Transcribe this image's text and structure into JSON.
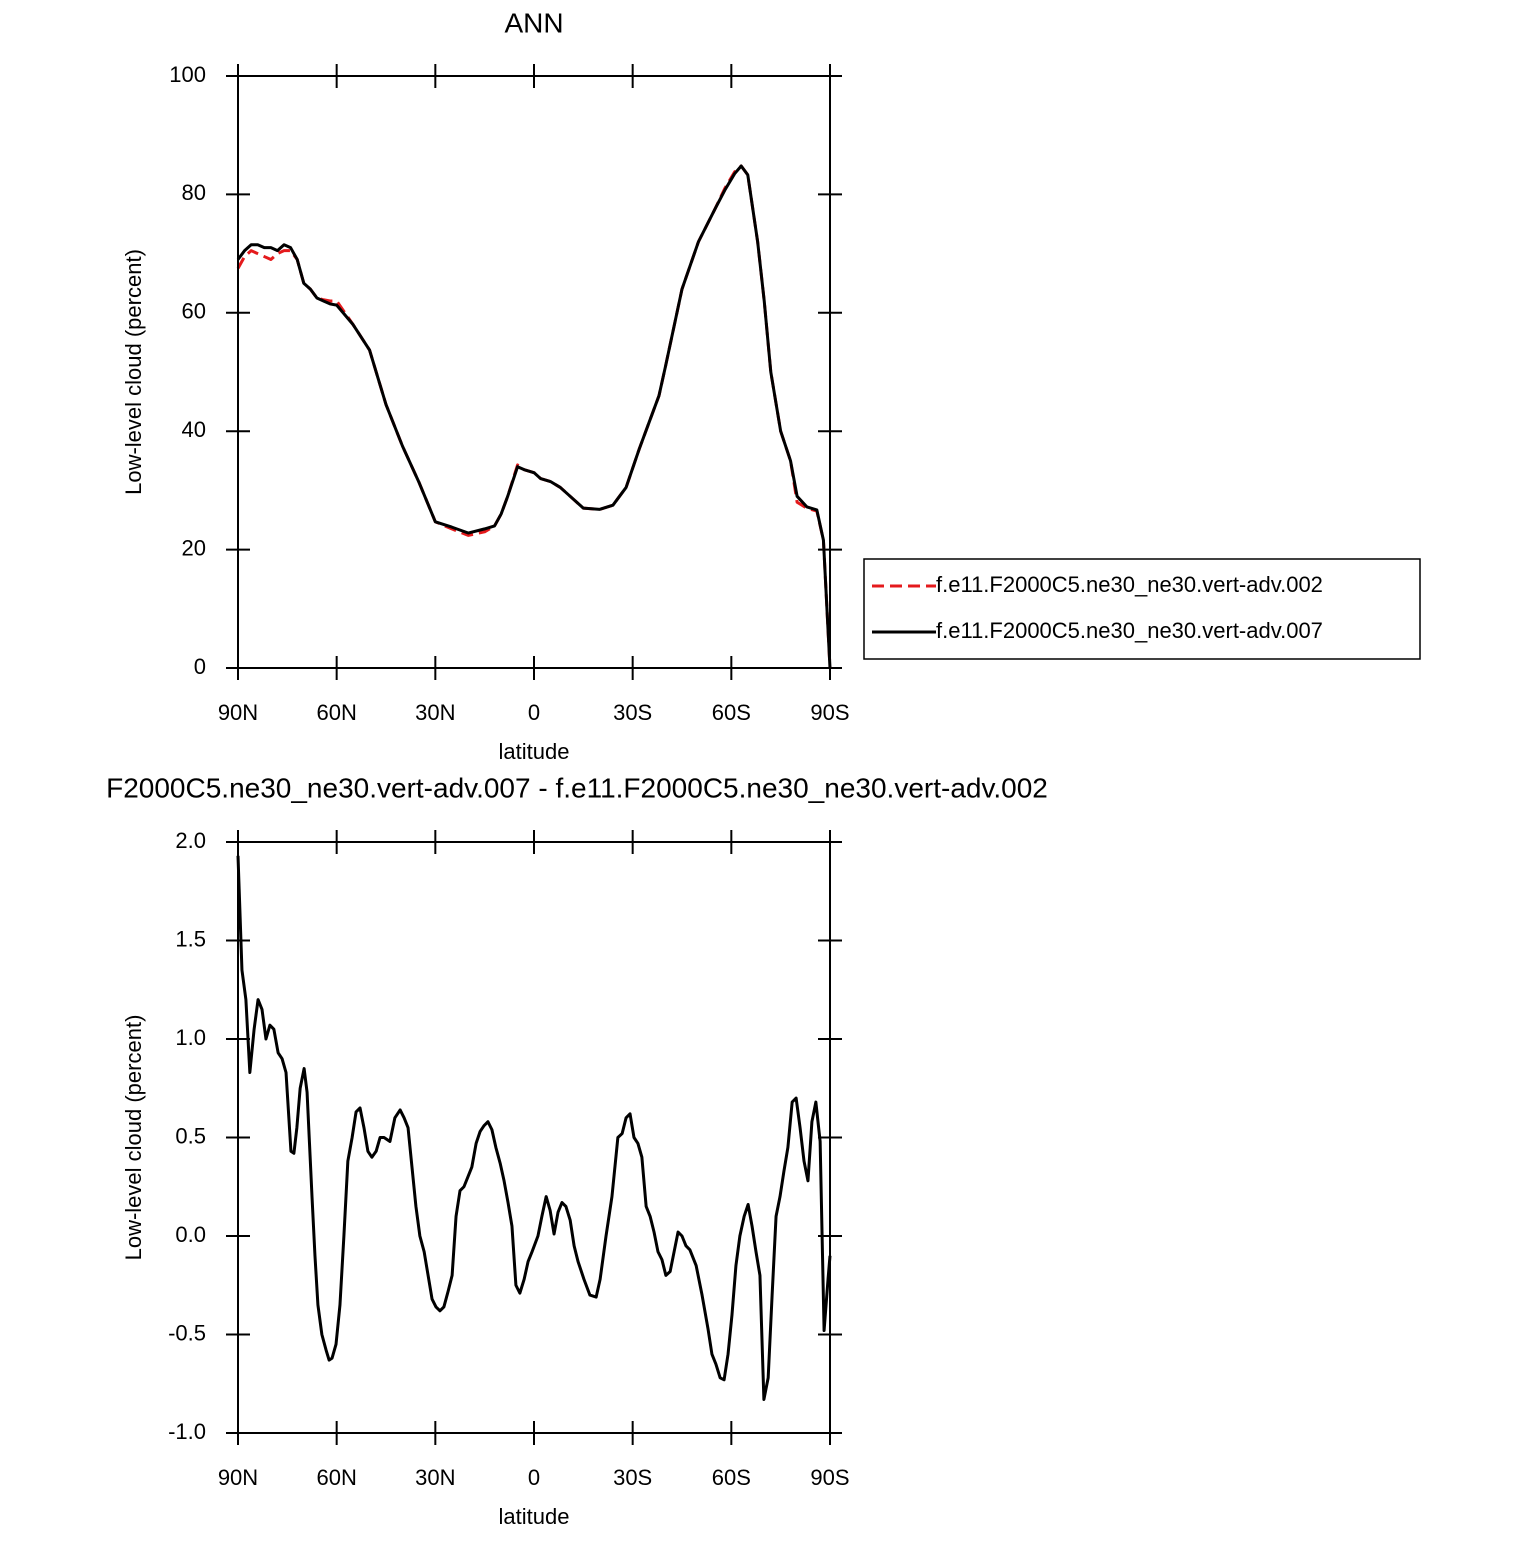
{
  "chart_data": [
    {
      "type": "line",
      "title": "ANN",
      "xlabel": "latitude",
      "ylabel": "Low-level cloud (percent)",
      "x": [
        90,
        88,
        86,
        84,
        82,
        80,
        78,
        76,
        74,
        72,
        70,
        68,
        66,
        64,
        62,
        60,
        55,
        50,
        45,
        40,
        35,
        30,
        25,
        20,
        15,
        12,
        10,
        8,
        5,
        3,
        0,
        -2,
        -5,
        -8,
        -11,
        -15,
        -20,
        -24,
        -28,
        -32,
        -35,
        -38,
        -40,
        -45,
        -50,
        -55,
        -58,
        -61,
        -63,
        -65,
        -68,
        -70,
        -72,
        -75,
        -78,
        -80,
        -83,
        -86,
        -88,
        -90
      ],
      "series": [
        {
          "name": "f.e11.F2000C5.ne30_ne30.vert-adv.002",
          "color": "#e41a1c",
          "line_style": "dashed",
          "values": [
            67.5,
            69.5,
            70.5,
            70,
            69.5,
            69,
            70,
            70.5,
            70.5,
            69,
            65,
            64,
            62.5,
            62.2,
            62,
            62,
            58,
            53.7,
            44.5,
            37.5,
            31.4,
            24.7,
            23.5,
            22.4,
            23,
            24,
            26,
            29,
            34.3,
            33.5,
            33,
            32,
            31.5,
            30.5,
            29,
            27,
            26.8,
            27.5,
            30.5,
            37,
            41.5,
            46,
            51,
            64,
            72,
            77.5,
            81,
            83.8,
            84.8,
            83.3,
            72,
            62,
            50,
            40,
            35,
            28,
            27,
            26.5,
            21.6,
            0
          ]
        },
        {
          "name": "f.e11.F2000C5.ne30_ne30.vert-adv.007",
          "color": "#000000",
          "line_style": "solid",
          "values": [
            69,
            70.5,
            71.5,
            71.5,
            71,
            71,
            70.5,
            71.5,
            71,
            69,
            65,
            64,
            62.5,
            62,
            61.5,
            61.3,
            58,
            53.7,
            44.5,
            37.5,
            31.4,
            24.7,
            23.8,
            22.8,
            23.5,
            24,
            26,
            29,
            34,
            33.5,
            33,
            32,
            31.5,
            30.5,
            29,
            27,
            26.8,
            27.5,
            30.5,
            37,
            41.5,
            46,
            51,
            64,
            72,
            77.5,
            80.7,
            83.5,
            84.8,
            83.3,
            72,
            62,
            50,
            40,
            35,
            29,
            27.2,
            26.7,
            21.6,
            0
          ]
        }
      ],
      "xlim": [
        90,
        -90
      ],
      "xticks": [
        {
          "value": 90,
          "label": "90N"
        },
        {
          "value": 60,
          "label": "60N"
        },
        {
          "value": 30,
          "label": "30N"
        },
        0,
        {
          "value": -30,
          "label": "30S"
        },
        {
          "value": -60,
          "label": "60S"
        },
        {
          "value": -90,
          "label": "90S"
        }
      ],
      "ylim": [
        0,
        100
      ],
      "yticks": [
        0,
        20,
        40,
        60,
        80,
        100
      ],
      "legend": "right"
    },
    {
      "type": "line",
      "title": "F2000C5.ne30_ne30.vert-adv.007 - f.e11.F2000C5.ne30_ne30.vert-adv.002",
      "xlabel": "latitude",
      "ylabel": "Low-level cloud (percent)",
      "x": [
        90,
        88.8,
        87.6,
        86.4,
        85.1,
        83.9,
        82.7,
        81.5,
        80.3,
        79.1,
        77.8,
        76.6,
        75.4,
        73.9,
        73,
        72.1,
        71.1,
        69.9,
        69,
        67.5,
        66.6,
        65.7,
        64.5,
        63.2,
        62.3,
        61.4,
        60.2,
        59,
        57.8,
        56.6,
        55.3,
        54.1,
        52.9,
        51.7,
        50.5,
        49.3,
        48,
        46.8,
        45.6,
        43.8,
        42.3,
        40.7,
        39.5,
        38.3,
        37.1,
        35.9,
        34.7,
        33.4,
        32.2,
        31,
        29.8,
        28.6,
        27.4,
        26.1,
        24.9,
        23.7,
        22.5,
        21.3,
        20.1,
        18.9,
        17.6,
        16.4,
        15.2,
        14,
        12.8,
        11.6,
        10.3,
        9.1,
        7.9,
        6.7,
        5.5,
        4.3,
        3,
        1.8,
        0.6,
        -1.2,
        -2.4,
        -3.7,
        -4.9,
        -6.1,
        -7.3,
        -8.5,
        -9.7,
        -11,
        -12.2,
        -13.4,
        -15.2,
        -17,
        -18.9,
        -20.1,
        -21.9,
        -23.7,
        -25.5,
        -26.8,
        -28,
        -29.2,
        -30.4,
        -31.6,
        -32.8,
        -34.1,
        -35.3,
        -36.5,
        -37.7,
        -38.9,
        -40.1,
        -41.4,
        -42.6,
        -43.8,
        -45,
        -46.2,
        -47.4,
        -49.3,
        -51.1,
        -52.9,
        -54.1,
        -55.3,
        -56.6,
        -57.8,
        -59,
        -60.2,
        -61.4,
        -62.6,
        -63.9,
        -65.1,
        -66.3,
        -67.5,
        -68.7,
        -69.9,
        -71.2,
        -72.4,
        -73.6,
        -74.8,
        -76,
        -77.2,
        -78.5,
        -79.7,
        -80.9,
        -82.1,
        -83.3,
        -84.5,
        -85.7,
        -87,
        -88.2,
        -89.4,
        -90
      ],
      "series": [
        {
          "color": "#000000",
          "line_style": "solid",
          "values": [
            1.93,
            1.35,
            1.2,
            0.83,
            1.05,
            1.2,
            1.15,
            1.0,
            1.07,
            1.05,
            0.93,
            0.9,
            0.83,
            0.43,
            0.42,
            0.55,
            0.75,
            0.85,
            0.73,
            0.2,
            -0.1,
            -0.35,
            -0.5,
            -0.58,
            -0.63,
            -0.62,
            -0.55,
            -0.35,
            0.0,
            0.38,
            0.5,
            0.63,
            0.65,
            0.55,
            0.43,
            0.4,
            0.43,
            0.5,
            0.5,
            0.48,
            0.6,
            0.64,
            0.6,
            0.55,
            0.35,
            0.15,
            0.0,
            -0.08,
            -0.2,
            -0.32,
            -0.36,
            -0.38,
            -0.36,
            -0.28,
            -0.2,
            0.1,
            0.23,
            0.25,
            0.3,
            0.35,
            0.47,
            0.53,
            0.56,
            0.58,
            0.54,
            0.45,
            0.37,
            0.28,
            0.17,
            0.05,
            -0.25,
            -0.29,
            -0.22,
            -0.13,
            -0.08,
            0.0,
            0.1,
            0.2,
            0.13,
            0.01,
            0.12,
            0.17,
            0.15,
            0.08,
            -0.05,
            -0.13,
            -0.22,
            -0.3,
            -0.31,
            -0.22,
            0.0,
            0.2,
            0.5,
            0.52,
            0.6,
            0.62,
            0.5,
            0.47,
            0.4,
            0.15,
            0.1,
            0.02,
            -0.08,
            -0.12,
            -0.2,
            -0.18,
            -0.08,
            0.02,
            0.0,
            -0.05,
            -0.07,
            -0.15,
            -0.3,
            -0.47,
            -0.6,
            -0.65,
            -0.72,
            -0.73,
            -0.6,
            -0.4,
            -0.15,
            0.0,
            0.1,
            0.16,
            0.05,
            -0.08,
            -0.2,
            -0.83,
            -0.72,
            -0.3,
            0.1,
            0.2,
            0.33,
            0.45,
            0.68,
            0.7,
            0.55,
            0.38,
            0.28,
            0.58,
            0.68,
            0.48,
            -0.48,
            -0.22,
            -0.1
          ]
        }
      ],
      "xlim": [
        90,
        -90
      ],
      "xticks": [
        {
          "value": 90,
          "label": "90N"
        },
        {
          "value": 60,
          "label": "60N"
        },
        {
          "value": 30,
          "label": "30N"
        },
        0,
        {
          "value": -30,
          "label": "30S"
        },
        {
          "value": -60,
          "label": "60S"
        },
        {
          "value": -90,
          "label": "90S"
        }
      ],
      "ylim": [
        -1,
        2
      ],
      "yticks": [
        {
          "value": -1,
          "label": "-1.0"
        },
        -0.5,
        {
          "value": 0,
          "label": "0.0"
        },
        0.5,
        {
          "value": 1,
          "label": "1.0"
        },
        1.5,
        {
          "value": 2,
          "label": "2.0"
        }
      ]
    }
  ]
}
